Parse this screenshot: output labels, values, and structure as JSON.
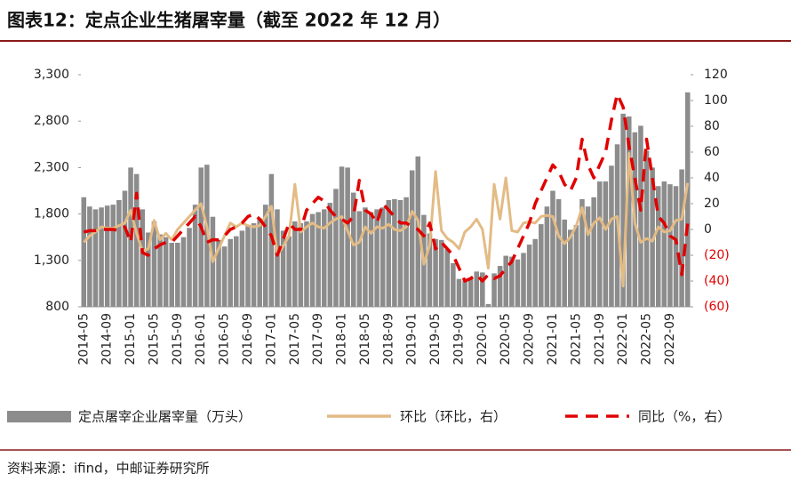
{
  "chart_data": {
    "type": "bar",
    "title": "图表12：定点企业生猪屠宰量（截至 2022 年 12 月）",
    "source": "资料来源：ifind，中邮证券研究所",
    "categories": [
      "2014-05",
      null,
      null,
      null,
      "2014-09",
      null,
      null,
      null,
      "2015-01",
      null,
      null,
      null,
      "2015-05",
      null,
      null,
      null,
      "2015-09",
      null,
      null,
      null,
      "2016-01",
      null,
      null,
      null,
      "2016-05",
      null,
      null,
      null,
      "2016-09",
      null,
      null,
      null,
      "2017-01",
      null,
      null,
      null,
      "2017-05",
      null,
      null,
      null,
      "2017-09",
      null,
      null,
      null,
      "2018-01",
      null,
      null,
      null,
      "2018-05",
      null,
      null,
      null,
      "2018-09",
      null,
      null,
      null,
      "2019-01",
      null,
      null,
      null,
      "2019-05",
      null,
      null,
      null,
      "2019-09",
      null,
      null,
      null,
      "2020-01",
      null,
      null,
      null,
      "2020-05",
      null,
      null,
      null,
      "2020-09",
      null,
      null,
      null,
      "2021-01",
      null,
      null,
      null,
      "2021-05",
      null,
      null,
      null,
      "2021-09",
      null,
      null,
      null,
      "2022-01",
      null,
      null,
      null,
      "2022-05",
      null,
      null,
      null,
      "2022-09",
      null,
      null,
      null
    ],
    "ylim": [
      800,
      3300
    ],
    "yticks": [
      800,
      {
        "value": 1300,
        "label": "1,300"
      },
      {
        "value": 1800,
        "label": "1,800"
      },
      {
        "value": 2300,
        "label": "2,300"
      },
      {
        "value": 2800,
        "label": "2,800"
      },
      {
        "value": 3300,
        "label": "3,300"
      }
    ],
    "y2lim": [
      -60,
      120
    ],
    "y2ticks": [
      {
        "value": -60,
        "label": "(60)"
      },
      {
        "value": -40,
        "label": "(40)"
      },
      {
        "value": -20,
        "label": "(20)"
      },
      0,
      20,
      40,
      60,
      80,
      100,
      120
    ],
    "negative_tick_color": "#e00000",
    "series": [
      {
        "name": "定点屠宰企业屠宰量（万头）",
        "type": "bar",
        "color": "#8c8c8c",
        "values": [
          1980,
          1880,
          1850,
          1870,
          1890,
          1900,
          1950,
          2050,
          2300,
          2230,
          1850,
          1600,
          1720,
          1580,
          1550,
          1490,
          1490,
          1550,
          1650,
          1900,
          2300,
          2330,
          1770,
          1520,
          1450,
          1530,
          1560,
          1620,
          1680,
          1700,
          1750,
          1900,
          2230,
          1850,
          1620,
          1560,
          1720,
          1700,
          1720,
          1800,
          1820,
          1850,
          1920,
          2070,
          2310,
          2300,
          2030,
          1830,
          1870,
          1820,
          1850,
          1870,
          1950,
          1960,
          1950,
          1980,
          2270,
          2420,
          1790,
          1590,
          1530,
          1520,
          1420,
          1270,
          1100,
          1080,
          1100,
          1180,
          1170,
          830,
          1160,
          1240,
          1350,
          1340,
          1310,
          1380,
          1470,
          1530,
          1690,
          1880,
          2050,
          1960,
          1740,
          1630,
          1680,
          1960,
          1880,
          1980,
          2150,
          2150,
          2320,
          2550,
          2880,
          2850,
          2680,
          2750,
          2480,
          2300,
          2100,
          2150,
          2120,
          2100,
          2280,
          3110
        ]
      },
      {
        "name": "环比（环比，右）",
        "type": "line",
        "axis": "y2",
        "color": "#e3bb85",
        "values": [
          -10,
          -5,
          -2,
          2,
          1,
          1,
          3,
          5,
          15,
          -3,
          -17,
          -15,
          7,
          -8,
          -3,
          -8,
          0,
          5,
          10,
          15,
          20,
          2,
          -25,
          -15,
          -5,
          5,
          2,
          5,
          3,
          2,
          3,
          10,
          18,
          -20,
          -13,
          -5,
          35,
          -2,
          2,
          5,
          2,
          1,
          5,
          8,
          10,
          -1,
          -12,
          -10,
          2,
          -3,
          2,
          1,
          4,
          0,
          -1,
          2,
          14,
          7,
          -27,
          -12,
          45,
          -1,
          -7,
          -10,
          -15,
          -2,
          2,
          8,
          0,
          -30,
          35,
          8,
          40,
          -1,
          -2,
          5,
          6,
          5,
          10,
          11,
          10,
          -5,
          -11,
          -6,
          3,
          17,
          -4,
          5,
          9,
          0,
          8,
          10,
          -44,
          59,
          5,
          -10,
          -7,
          -9,
          2,
          -2,
          -1,
          7,
          8,
          36
        ]
      },
      {
        "name": "同比（%，右）",
        "type": "line",
        "axis": "y2",
        "dash": true,
        "color": "#e00000",
        "values": [
          -2,
          -1,
          -1,
          0,
          0,
          0,
          -1,
          2,
          -10,
          28,
          -18,
          -20,
          -15,
          -12,
          -10,
          -10,
          -5,
          0,
          5,
          10,
          2,
          -10,
          -8,
          -8,
          -5,
          0,
          2,
          5,
          10,
          12,
          8,
          2,
          -5,
          -20,
          -8,
          5,
          0,
          0,
          15,
          20,
          25,
          22,
          15,
          10,
          8,
          5,
          10,
          38,
          15,
          12,
          5,
          20,
          15,
          10,
          5,
          5,
          2,
          0,
          -5,
          5,
          -15,
          -10,
          -15,
          -20,
          -30,
          -40,
          -38,
          -35,
          -40,
          -35,
          -38,
          -36,
          -30,
          -25,
          -15,
          -5,
          5,
          20,
          30,
          40,
          50,
          45,
          35,
          30,
          40,
          70,
          50,
          40,
          50,
          60,
          85,
          105,
          95,
          65,
          40,
          15,
          70,
          40,
          10,
          5,
          -5,
          -8,
          -35,
          5
        ]
      }
    ]
  }
}
